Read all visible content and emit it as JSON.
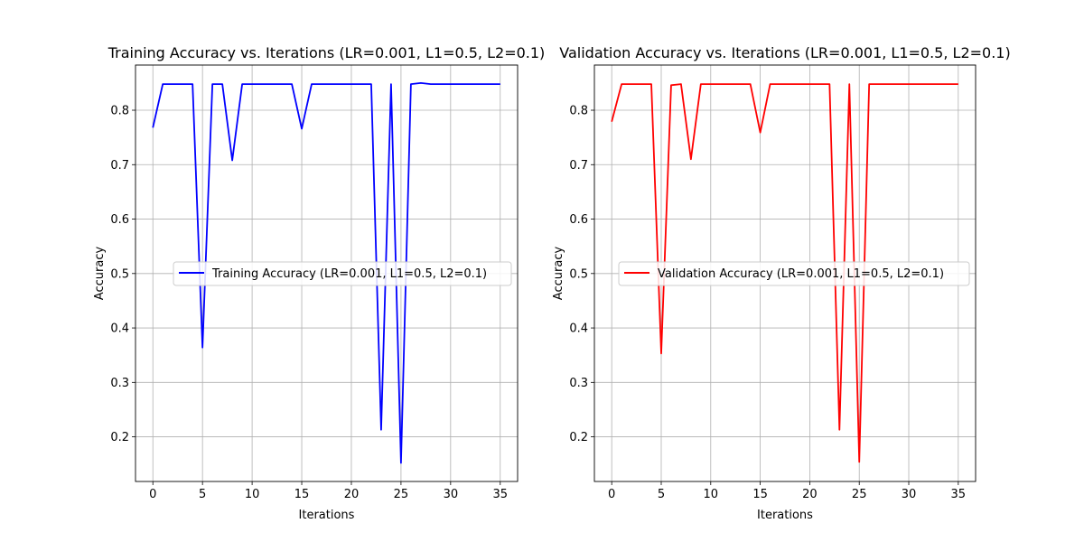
{
  "chart_data": [
    {
      "type": "line",
      "title": "Training Accuracy vs. Iterations (LR=0.001, L1=0.5, L2=0.1)",
      "xlabel": "Iterations",
      "ylabel": "Accuracy",
      "xlim": [
        -1.75,
        36.75
      ],
      "ylim": [
        0.118,
        0.883
      ],
      "xticks": [
        0,
        5,
        10,
        15,
        20,
        25,
        30,
        35
      ],
      "yticks": [
        0.2,
        0.3,
        0.4,
        0.5,
        0.6,
        0.7,
        0.8
      ],
      "grid": true,
      "legend_position": "center-right",
      "series": [
        {
          "name": "Training Accuracy (LR=0.001, L1=0.5, L2=0.1)",
          "color": "#0000ff",
          "x": [
            0,
            1,
            2,
            3,
            4,
            5,
            6,
            7,
            8,
            9,
            10,
            11,
            12,
            13,
            14,
            15,
            16,
            17,
            18,
            19,
            20,
            21,
            22,
            23,
            24,
            25,
            26,
            27,
            28,
            29,
            30,
            31,
            32,
            33,
            34,
            35
          ],
          "values": [
            0.768,
            0.848,
            0.848,
            0.848,
            0.848,
            0.364,
            0.848,
            0.848,
            0.708,
            0.848,
            0.848,
            0.848,
            0.848,
            0.848,
            0.848,
            0.766,
            0.848,
            0.848,
            0.848,
            0.848,
            0.848,
            0.848,
            0.848,
            0.213,
            0.848,
            0.152,
            0.848,
            0.85,
            0.848,
            0.848,
            0.848,
            0.848,
            0.848,
            0.848,
            0.848,
            0.848
          ]
        }
      ]
    },
    {
      "type": "line",
      "title": "Validation Accuracy vs. Iterations (LR=0.001, L1=0.5, L2=0.1)",
      "xlabel": "Iterations",
      "ylabel": "Accuracy",
      "xlim": [
        -1.75,
        36.75
      ],
      "ylim": [
        0.118,
        0.883
      ],
      "xticks": [
        0,
        5,
        10,
        15,
        20,
        25,
        30,
        35
      ],
      "yticks": [
        0.2,
        0.3,
        0.4,
        0.5,
        0.6,
        0.7,
        0.8
      ],
      "grid": true,
      "legend_position": "center-right",
      "series": [
        {
          "name": "Validation Accuracy (LR=0.001, L1=0.5, L2=0.1)",
          "color": "#ff0000",
          "x": [
            0,
            1,
            2,
            3,
            4,
            5,
            6,
            7,
            8,
            9,
            10,
            11,
            12,
            13,
            14,
            15,
            16,
            17,
            18,
            19,
            20,
            21,
            22,
            23,
            24,
            25,
            26,
            27,
            28,
            29,
            30,
            31,
            32,
            33,
            34,
            35
          ],
          "values": [
            0.779,
            0.848,
            0.848,
            0.848,
            0.848,
            0.353,
            0.846,
            0.848,
            0.71,
            0.848,
            0.848,
            0.848,
            0.848,
            0.848,
            0.848,
            0.759,
            0.848,
            0.848,
            0.848,
            0.848,
            0.848,
            0.848,
            0.848,
            0.213,
            0.848,
            0.154,
            0.848,
            0.848,
            0.848,
            0.848,
            0.848,
            0.848,
            0.848,
            0.848,
            0.848,
            0.848
          ]
        }
      ]
    }
  ]
}
